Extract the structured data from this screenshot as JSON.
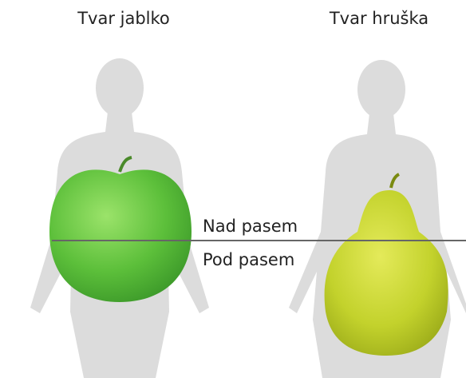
{
  "labels": {
    "apple": "Tvar jablko",
    "pear": "Tvar hruška"
  },
  "waist": {
    "above": "Nad pasem",
    "below": "Pod pasem"
  }
}
